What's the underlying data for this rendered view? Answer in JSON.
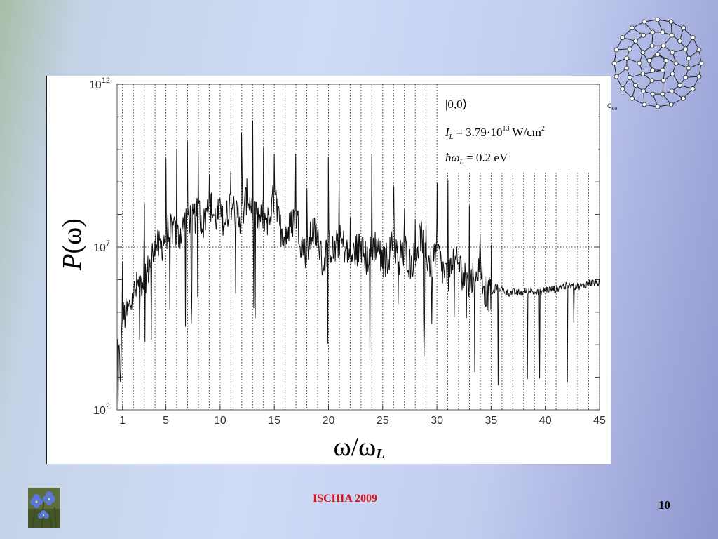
{
  "chart_data": {
    "type": "line",
    "xlabel_main": "ω/ω",
    "xlabel_sub": "L",
    "ylabel_main": "P",
    "ylabel_arg": "(ω)",
    "x_ticks": [
      "1",
      "5",
      "10",
      "15",
      "20",
      "25",
      "30",
      "35",
      "40",
      "45"
    ],
    "y_tick_base": "10",
    "y_ticks": [
      {
        "exp": "12",
        "log10": 12
      },
      {
        "exp": "7",
        "log10": 7
      },
      {
        "exp": "2",
        "log10": 2
      }
    ],
    "xlim": [
      0.5,
      45
    ],
    "ylim_log10": [
      2,
      12
    ],
    "y_scale": "log",
    "grid": "dotted vertical lines at integer harmonics",
    "legend_lines": {
      "state": "|0,0⟩",
      "intensity_lhs": "I",
      "intensity_sub": "L",
      "intensity_rhs": "= 3.79·10",
      "intensity_exp": "13",
      "intensity_unit": " W/cm",
      "intensity_unit_exp": "2",
      "photon_lhs": "ħω",
      "photon_sub": "L",
      "photon_rhs": "= 0.2 eV"
    },
    "series": [
      {
        "x": [
          0.6,
          0.8,
          1.0,
          1.5,
          2.0,
          2.5,
          3.0,
          3.5,
          4.0,
          4.5,
          5.0,
          5.5,
          6.0,
          6.5,
          7.0,
          7.5,
          8.0,
          8.5,
          9.0,
          9.5,
          10.0,
          10.5,
          11.0,
          11.5,
          12.0,
          12.5,
          13.0,
          13.5,
          14.0,
          14.5,
          15.0,
          15.5,
          16.0,
          16.5,
          17.0,
          17.5,
          18.0,
          18.5,
          19.0,
          19.5,
          20.0,
          20.5,
          21.0,
          21.5,
          22.0,
          22.5,
          23.0,
          23.5,
          24.0,
          24.5,
          25.0,
          25.5,
          26.0,
          26.5,
          27.0,
          27.5,
          28.0,
          28.5,
          29.0,
          29.5,
          30.0,
          30.5,
          31.0,
          31.5,
          32.0,
          32.5,
          33.0,
          33.5,
          34.0,
          34.5,
          35.0,
          35.5,
          36.0,
          36.5,
          37.0,
          37.5,
          38.0,
          38.5,
          39.0,
          39.5,
          40.0,
          40.5,
          41.0,
          41.5,
          42.0,
          42.5,
          43.0,
          43.5,
          44.0,
          44.5,
          45.0
        ],
        "log10_y": [
          4.0,
          3.0,
          4.8,
          5.0,
          5.5,
          5.9,
          6.0,
          6.4,
          7.2,
          6.9,
          7.4,
          7.6,
          7.3,
          7.5,
          8.0,
          7.8,
          8.1,
          7.7,
          8.4,
          7.9,
          8.0,
          7.8,
          8.4,
          8.0,
          7.9,
          8.6,
          8.2,
          7.7,
          8.0,
          7.8,
          8.6,
          7.6,
          7.4,
          7.6,
          8.1,
          7.1,
          6.8,
          7.5,
          7.3,
          6.4,
          7.1,
          6.8,
          7.2,
          7.0,
          6.6,
          6.9,
          7.0,
          6.6,
          7.0,
          7.1,
          6.5,
          6.7,
          7.2,
          6.6,
          7.0,
          6.5,
          6.7,
          7.4,
          6.8,
          6.4,
          7.0,
          6.3,
          6.1,
          6.6,
          6.4,
          6.1,
          5.8,
          6.3,
          6.4,
          5.6,
          5.5,
          5.8,
          5.7,
          5.6,
          5.6,
          5.6,
          5.6,
          5.7,
          5.6,
          5.6,
          5.7,
          5.7,
          5.7,
          5.8,
          5.8,
          5.8,
          5.8,
          5.8,
          5.9,
          5.9,
          5.9
        ]
      }
    ]
  },
  "molecule": {
    "label": "C",
    "label_sub": "60"
  },
  "footer": {
    "title": "ISCHIA 2009",
    "page_number": "10"
  }
}
